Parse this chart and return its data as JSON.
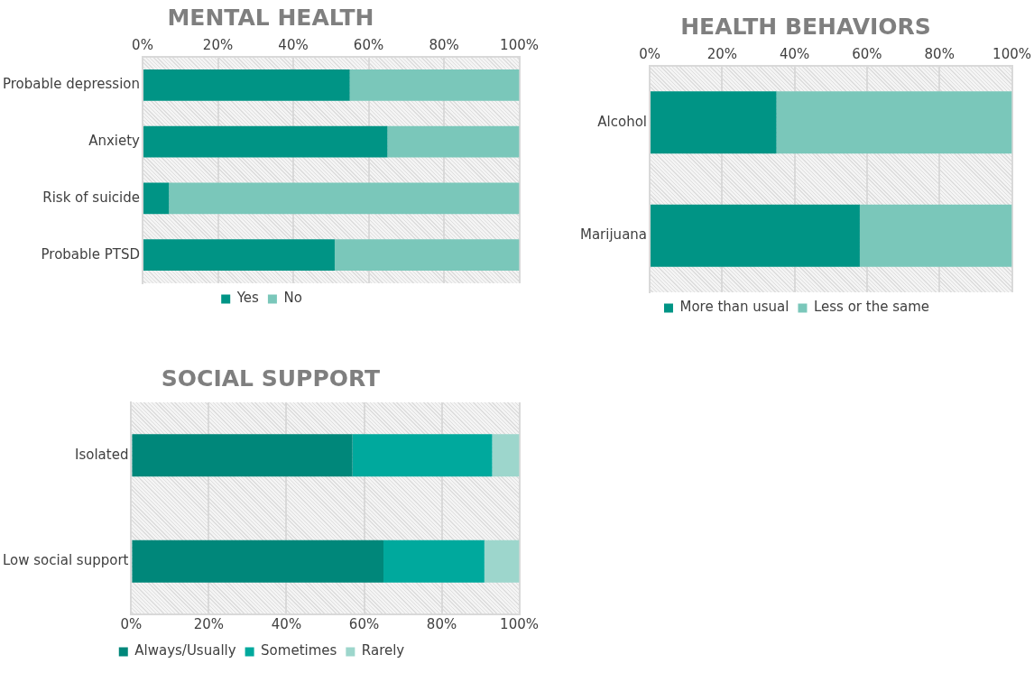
{
  "chart_data": [
    {
      "type": "bar",
      "title": "MENTAL HEALTH",
      "orientation": "horizontal",
      "stacked": true,
      "categories": [
        "Probable depression",
        "Anxiety",
        "Risk of suicide",
        "Probable PTSD"
      ],
      "series": [
        {
          "name": "Yes",
          "color": "#009485",
          "values": [
            55,
            65,
            7,
            51
          ]
        },
        {
          "name": "No",
          "color": "#7ac7ba",
          "values": [
            45,
            35,
            93,
            49
          ]
        }
      ],
      "xlim": [
        0,
        100
      ],
      "xticks": [
        {
          "value": 0,
          "label": "0%"
        },
        {
          "value": 20,
          "label": "20%"
        },
        {
          "value": 40,
          "label": "40%"
        },
        {
          "value": 60,
          "label": "60%"
        },
        {
          "value": 80,
          "label": "80%"
        },
        {
          "value": 100,
          "label": "100%"
        }
      ],
      "grid": "x",
      "legend": "bottom"
    },
    {
      "type": "bar",
      "title": "HEALTH BEHAVIORS",
      "orientation": "horizontal",
      "stacked": true,
      "categories": [
        "Alcohol",
        "Marijuana"
      ],
      "series": [
        {
          "name": "More than usual",
          "color": "#009485",
          "values": [
            35,
            58
          ]
        },
        {
          "name": "Less or the same",
          "color": "#7ac7ba",
          "values": [
            65,
            42
          ]
        }
      ],
      "xlim": [
        0,
        100
      ],
      "xticks": [
        {
          "value": 0,
          "label": "0%"
        },
        {
          "value": 20,
          "label": "20%"
        },
        {
          "value": 40,
          "label": "40%"
        },
        {
          "value": 60,
          "label": "60%"
        },
        {
          "value": 80,
          "label": "80%"
        },
        {
          "value": 100,
          "label": "100%"
        }
      ],
      "grid": "x",
      "legend": "bottom"
    },
    {
      "type": "bar",
      "title": "SOCIAL SUPPORT",
      "orientation": "horizontal",
      "stacked": true,
      "categories": [
        "Isolated",
        "Low social support"
      ],
      "series": [
        {
          "name": "Always/Usually",
          "color": "#00877a",
          "values": [
            57,
            65
          ]
        },
        {
          "name": "Sometimes",
          "color": "#00a99d",
          "values": [
            36,
            26
          ]
        },
        {
          "name": "Rarely",
          "color": "#9dd6cc",
          "values": [
            7,
            9
          ]
        }
      ],
      "xlim": [
        0,
        100
      ],
      "xticks": [
        {
          "value": 0,
          "label": "0%"
        },
        {
          "value": 20,
          "label": "20%"
        },
        {
          "value": 40,
          "label": "40%"
        },
        {
          "value": 60,
          "label": "60%"
        },
        {
          "value": 80,
          "label": "80%"
        },
        {
          "value": 100,
          "label": "100%"
        }
      ],
      "grid": "x",
      "legend": "bottom"
    }
  ]
}
